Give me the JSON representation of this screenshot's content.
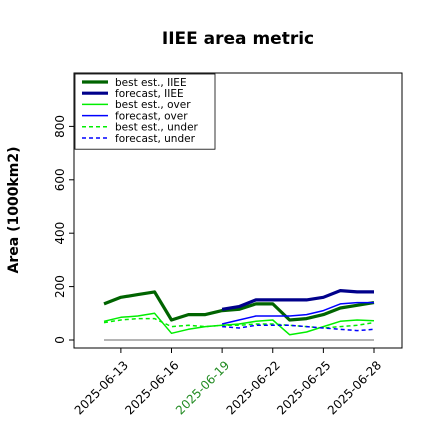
{
  "chart_data": {
    "type": "line",
    "title": "IIEE area metric",
    "ylabel": "Area (1000km2)",
    "xlabel": "",
    "ylim": [
      -30,
      1000
    ],
    "yticks": [
      0,
      200,
      400,
      600,
      800
    ],
    "x_dates": [
      "2025-06-12",
      "2025-06-13",
      "2025-06-14",
      "2025-06-15",
      "2025-06-16",
      "2025-06-17",
      "2025-06-18",
      "2025-06-19",
      "2025-06-20",
      "2025-06-21",
      "2025-06-22",
      "2025-06-23",
      "2025-06-24",
      "2025-06-25",
      "2025-06-26",
      "2025-06-27",
      "2025-06-28"
    ],
    "xticks": [
      {
        "label": "2025-06-13",
        "color": "#000000"
      },
      {
        "label": "2025-06-16",
        "color": "#000000"
      },
      {
        "label": "2025-06-19",
        "color": "#228b22"
      },
      {
        "label": "2025-06-22",
        "color": "#000000"
      },
      {
        "label": "2025-06-25",
        "color": "#000000"
      },
      {
        "label": "2025-06-28",
        "color": "#000000"
      }
    ],
    "legend_position": "top-left",
    "grid": false,
    "series": [
      {
        "name": "best est., IIEE",
        "color": "#006400",
        "style": "solid",
        "width": 3.2,
        "x": [
          "2025-06-12",
          "2025-06-13",
          "2025-06-14",
          "2025-06-15",
          "2025-06-16",
          "2025-06-17",
          "2025-06-18",
          "2025-06-19",
          "2025-06-20",
          "2025-06-21",
          "2025-06-22",
          "2025-06-23",
          "2025-06-24",
          "2025-06-25",
          "2025-06-26",
          "2025-06-27",
          "2025-06-28"
        ],
        "values": [
          135,
          160,
          170,
          180,
          75,
          95,
          95,
          110,
          115,
          135,
          135,
          75,
          80,
          95,
          120,
          130,
          140
        ]
      },
      {
        "name": "forecast, IIEE",
        "color": "#00008b",
        "style": "solid",
        "width": 3.2,
        "x": [
          "2025-06-19",
          "2025-06-20",
          "2025-06-21",
          "2025-06-22",
          "2025-06-23",
          "2025-06-24",
          "2025-06-25",
          "2025-06-26",
          "2025-06-27",
          "2025-06-28"
        ],
        "values": [
          115,
          125,
          150,
          150,
          150,
          150,
          160,
          185,
          180,
          180
        ]
      },
      {
        "name": "best est., over",
        "color": "#00ee00",
        "style": "solid",
        "width": 1.5,
        "x": [
          "2025-06-12",
          "2025-06-13",
          "2025-06-14",
          "2025-06-15",
          "2025-06-16",
          "2025-06-17",
          "2025-06-18",
          "2025-06-19",
          "2025-06-20",
          "2025-06-21",
          "2025-06-22",
          "2025-06-23",
          "2025-06-24",
          "2025-06-25",
          "2025-06-26",
          "2025-06-27",
          "2025-06-28"
        ],
        "values": [
          70,
          85,
          90,
          100,
          25,
          40,
          50,
          55,
          60,
          70,
          75,
          20,
          30,
          50,
          70,
          75,
          72
        ]
      },
      {
        "name": "forecast, over",
        "color": "#0000ff",
        "style": "solid",
        "width": 1.5,
        "x": [
          "2025-06-19",
          "2025-06-20",
          "2025-06-21",
          "2025-06-22",
          "2025-06-23",
          "2025-06-24",
          "2025-06-25",
          "2025-06-26",
          "2025-06-27",
          "2025-06-28"
        ],
        "values": [
          60,
          75,
          90,
          90,
          90,
          95,
          110,
          135,
          140,
          140
        ]
      },
      {
        "name": "best est., under",
        "color": "#00ee00",
        "style": "dashed",
        "width": 1.5,
        "x": [
          "2025-06-12",
          "2025-06-13",
          "2025-06-14",
          "2025-06-15",
          "2025-06-16",
          "2025-06-17",
          "2025-06-18",
          "2025-06-19",
          "2025-06-20",
          "2025-06-21",
          "2025-06-22",
          "2025-06-23",
          "2025-06-24",
          "2025-06-25",
          "2025-06-26",
          "2025-06-27",
          "2025-06-28"
        ],
        "values": [
          65,
          75,
          80,
          80,
          50,
          55,
          50,
          55,
          55,
          60,
          60,
          55,
          50,
          45,
          50,
          55,
          65
        ]
      },
      {
        "name": "forecast, under",
        "color": "#0000ff",
        "style": "dashed",
        "width": 1.5,
        "x": [
          "2025-06-19",
          "2025-06-20",
          "2025-06-21",
          "2025-06-22",
          "2025-06-23",
          "2025-06-24",
          "2025-06-25",
          "2025-06-26",
          "2025-06-27",
          "2025-06-28"
        ],
        "values": [
          50,
          45,
          55,
          55,
          55,
          50,
          45,
          40,
          35,
          40
        ]
      },
      {
        "name": "",
        "color": "#888888",
        "style": "solid",
        "width": 1.2,
        "x": [
          "2025-06-12",
          "2025-06-28"
        ],
        "values": [
          0,
          0
        ]
      }
    ]
  }
}
